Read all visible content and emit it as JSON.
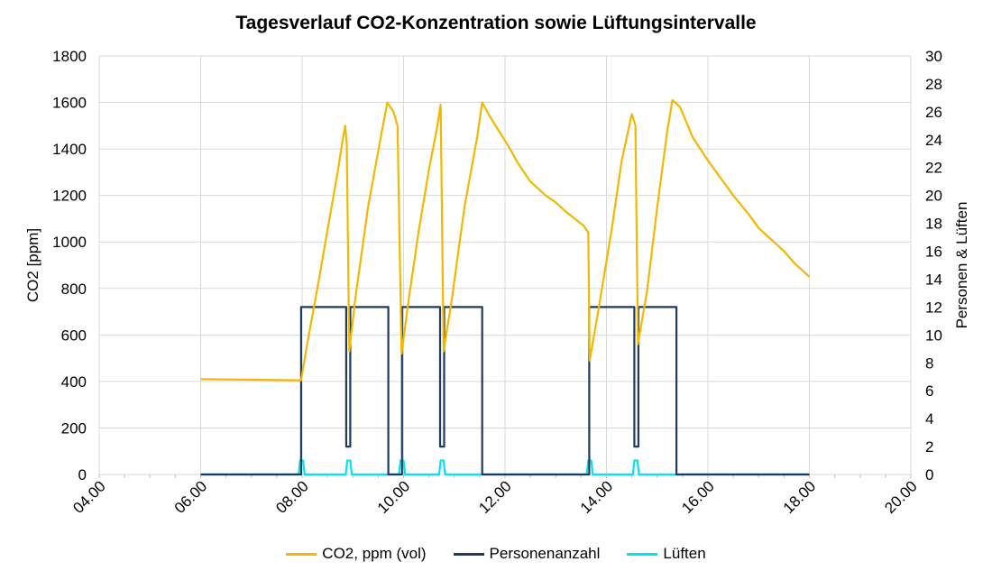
{
  "chart_data": {
    "type": "line",
    "title": "Tagesverlauf CO2-Konzentration sowie Lüftungsintervalle",
    "ylabel": "CO2 [ppm]",
    "y2label": "Personen & Lüften",
    "xlim": [
      4,
      20
    ],
    "ylim": [
      0,
      1800
    ],
    "y2lim": [
      0,
      30
    ],
    "x_ticks": [
      "04.00",
      "06.00",
      "08.00",
      "10.00",
      "12.00",
      "14.00",
      "16.00",
      "18.00",
      "20.00"
    ],
    "y_ticks": [
      "0",
      "200",
      "400",
      "600",
      "800",
      "1000",
      "1200",
      "1400",
      "1600",
      "1800"
    ],
    "y2_ticks": [
      "0",
      "2",
      "4",
      "6",
      "8",
      "10",
      "12",
      "14",
      "16",
      "18",
      "20",
      "22",
      "24",
      "26",
      "28",
      "30"
    ],
    "grid": true,
    "legend_position": "bottom",
    "series": [
      {
        "name": "CO2, ppm (vol)",
        "axis": "left",
        "color": "#F2B800",
        "points": [
          [
            6.0,
            410
          ],
          [
            7.98,
            405
          ],
          [
            8.1,
            560
          ],
          [
            8.3,
            800
          ],
          [
            8.5,
            1050
          ],
          [
            8.7,
            1300
          ],
          [
            8.8,
            1440
          ],
          [
            8.85,
            1500
          ],
          [
            8.88,
            1420
          ],
          [
            8.93,
            530
          ],
          [
            9.05,
            760
          ],
          [
            9.3,
            1150
          ],
          [
            9.55,
            1450
          ],
          [
            9.68,
            1600
          ],
          [
            9.8,
            1560
          ],
          [
            9.88,
            1500
          ],
          [
            9.96,
            520
          ],
          [
            10.1,
            750
          ],
          [
            10.3,
            1050
          ],
          [
            10.5,
            1310
          ],
          [
            10.65,
            1480
          ],
          [
            10.73,
            1590
          ],
          [
            10.79,
            530
          ],
          [
            10.95,
            750
          ],
          [
            11.2,
            1150
          ],
          [
            11.45,
            1450
          ],
          [
            11.55,
            1600
          ],
          [
            11.7,
            1540
          ],
          [
            11.9,
            1470
          ],
          [
            12.1,
            1400
          ],
          [
            12.25,
            1340
          ],
          [
            12.5,
            1260
          ],
          [
            12.8,
            1200
          ],
          [
            13.0,
            1170
          ],
          [
            13.2,
            1130
          ],
          [
            13.55,
            1070
          ],
          [
            13.64,
            1040
          ],
          [
            13.67,
            490
          ],
          [
            13.85,
            720
          ],
          [
            14.1,
            1050
          ],
          [
            14.3,
            1350
          ],
          [
            14.5,
            1550
          ],
          [
            14.57,
            1500
          ],
          [
            14.62,
            560
          ],
          [
            14.8,
            790
          ],
          [
            15.0,
            1150
          ],
          [
            15.2,
            1480
          ],
          [
            15.3,
            1610
          ],
          [
            15.45,
            1580
          ],
          [
            15.7,
            1450
          ],
          [
            16.0,
            1350
          ],
          [
            16.5,
            1200
          ],
          [
            16.8,
            1120
          ],
          [
            17.0,
            1060
          ],
          [
            17.3,
            1000
          ],
          [
            17.5,
            960
          ],
          [
            17.7,
            910
          ],
          [
            17.85,
            880
          ],
          [
            18.0,
            850
          ]
        ]
      },
      {
        "name": "Personenanzahl",
        "axis": "right",
        "color": "#1F3A5F",
        "points": [
          [
            6.0,
            0
          ],
          [
            7.98,
            0
          ],
          [
            7.98,
            12
          ],
          [
            8.87,
            12
          ],
          [
            8.87,
            2
          ],
          [
            8.95,
            2
          ],
          [
            8.95,
            12
          ],
          [
            9.7,
            12
          ],
          [
            9.7,
            0
          ],
          [
            9.97,
            0
          ],
          [
            9.97,
            12
          ],
          [
            10.72,
            12
          ],
          [
            10.72,
            2
          ],
          [
            10.8,
            2
          ],
          [
            10.8,
            12
          ],
          [
            11.55,
            12
          ],
          [
            11.55,
            0
          ],
          [
            13.66,
            0
          ],
          [
            13.66,
            12
          ],
          [
            14.55,
            12
          ],
          [
            14.55,
            2
          ],
          [
            14.63,
            2
          ],
          [
            14.63,
            12
          ],
          [
            15.38,
            12
          ],
          [
            15.38,
            0
          ],
          [
            18.0,
            0
          ]
        ]
      },
      {
        "name": "Lüften",
        "axis": "right",
        "color": "#00E5F0",
        "points": [
          [
            6.0,
            0
          ],
          [
            7.93,
            0
          ],
          [
            7.96,
            1
          ],
          [
            8.02,
            1
          ],
          [
            8.05,
            0
          ],
          [
            8.86,
            0
          ],
          [
            8.89,
            1
          ],
          [
            8.95,
            1
          ],
          [
            8.98,
            0
          ],
          [
            9.91,
            0
          ],
          [
            9.94,
            1
          ],
          [
            10.0,
            1
          ],
          [
            10.03,
            0
          ],
          [
            10.7,
            0
          ],
          [
            10.73,
            1
          ],
          [
            10.79,
            1
          ],
          [
            10.82,
            0
          ],
          [
            13.61,
            0
          ],
          [
            13.64,
            1
          ],
          [
            13.7,
            1
          ],
          [
            13.73,
            0
          ],
          [
            14.52,
            0
          ],
          [
            14.55,
            1
          ],
          [
            14.61,
            1
          ],
          [
            14.64,
            0
          ],
          [
            18.0,
            0
          ]
        ]
      }
    ]
  }
}
